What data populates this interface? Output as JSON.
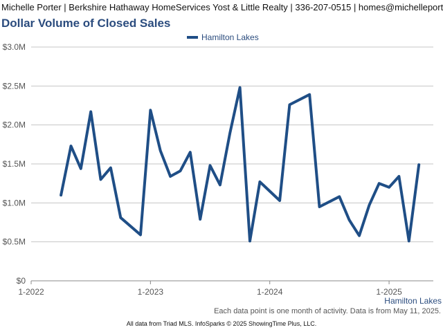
{
  "header": {
    "banner": "Michelle Porter | Berkshire Hathaway HomeServices Yost & Little Realty | 336-207-0515 | homes@michelleporter.com"
  },
  "colors": {
    "title": "#2b4c7e",
    "series": "#1f4e86",
    "grid": "#c4c4c4",
    "axis": "#888888",
    "text": "#555555"
  },
  "footer": {
    "note": "Each data point is one month of activity. Data is from May 11, 2025.",
    "copyright": "All data from Triad MLS. InfoSparks © 2025 ShowingTime Plus, LLC."
  },
  "chart_data": {
    "type": "line",
    "title": "Dollar Volume of Closed Sales",
    "xlabel": "Hamilton Lakes",
    "ylabel": "",
    "legend_position": "top-center",
    "grid": true,
    "ylim": [
      0,
      3000000
    ],
    "yticks": [
      {
        "value": 0,
        "label": "$0"
      },
      {
        "value": 500000,
        "label": "$0.5M"
      },
      {
        "value": 1000000,
        "label": "$1.0M"
      },
      {
        "value": 1500000,
        "label": "$1.5M"
      },
      {
        "value": 2000000,
        "label": "$2.0M"
      },
      {
        "value": 2500000,
        "label": "$2.5M"
      },
      {
        "value": 3000000,
        "label": "$3.0M"
      }
    ],
    "xlim": [
      "2022-01",
      "2025-05"
    ],
    "xticks": [
      {
        "value": "2022-01",
        "label": "1-2022"
      },
      {
        "value": "2023-01",
        "label": "1-2023"
      },
      {
        "value": "2024-01",
        "label": "1-2024"
      },
      {
        "value": "2025-01",
        "label": "1-2025"
      }
    ],
    "series": [
      {
        "name": "Hamilton Lakes",
        "color": "#1f4e86",
        "points": [
          {
            "x": "2022-04",
            "y": 1100000
          },
          {
            "x": "2022-05",
            "y": 1730000
          },
          {
            "x": "2022-06",
            "y": 1440000
          },
          {
            "x": "2022-07",
            "y": 2170000
          },
          {
            "x": "2022-08",
            "y": 1300000
          },
          {
            "x": "2022-09",
            "y": 1450000
          },
          {
            "x": "2022-10",
            "y": 810000
          },
          {
            "x": "2022-12",
            "y": 590000
          },
          {
            "x": "2023-01",
            "y": 2190000
          },
          {
            "x": "2023-02",
            "y": 1670000
          },
          {
            "x": "2023-03",
            "y": 1340000
          },
          {
            "x": "2023-04",
            "y": 1410000
          },
          {
            "x": "2023-05",
            "y": 1650000
          },
          {
            "x": "2023-06",
            "y": 790000
          },
          {
            "x": "2023-07",
            "y": 1480000
          },
          {
            "x": "2023-08",
            "y": 1230000
          },
          {
            "x": "2023-09",
            "y": 1900000
          },
          {
            "x": "2023-10",
            "y": 2480000
          },
          {
            "x": "2023-11",
            "y": 510000
          },
          {
            "x": "2023-12",
            "y": 1270000
          },
          {
            "x": "2024-02",
            "y": 1030000
          },
          {
            "x": "2024-03",
            "y": 2260000
          },
          {
            "x": "2024-05",
            "y": 2390000
          },
          {
            "x": "2024-06",
            "y": 950000
          },
          {
            "x": "2024-08",
            "y": 1080000
          },
          {
            "x": "2024-09",
            "y": 780000
          },
          {
            "x": "2024-10",
            "y": 580000
          },
          {
            "x": "2024-11",
            "y": 970000
          },
          {
            "x": "2024-12",
            "y": 1250000
          },
          {
            "x": "2025-01",
            "y": 1200000
          },
          {
            "x": "2025-02",
            "y": 1340000
          },
          {
            "x": "2025-03",
            "y": 510000
          },
          {
            "x": "2025-04",
            "y": 1490000
          }
        ]
      }
    ]
  }
}
